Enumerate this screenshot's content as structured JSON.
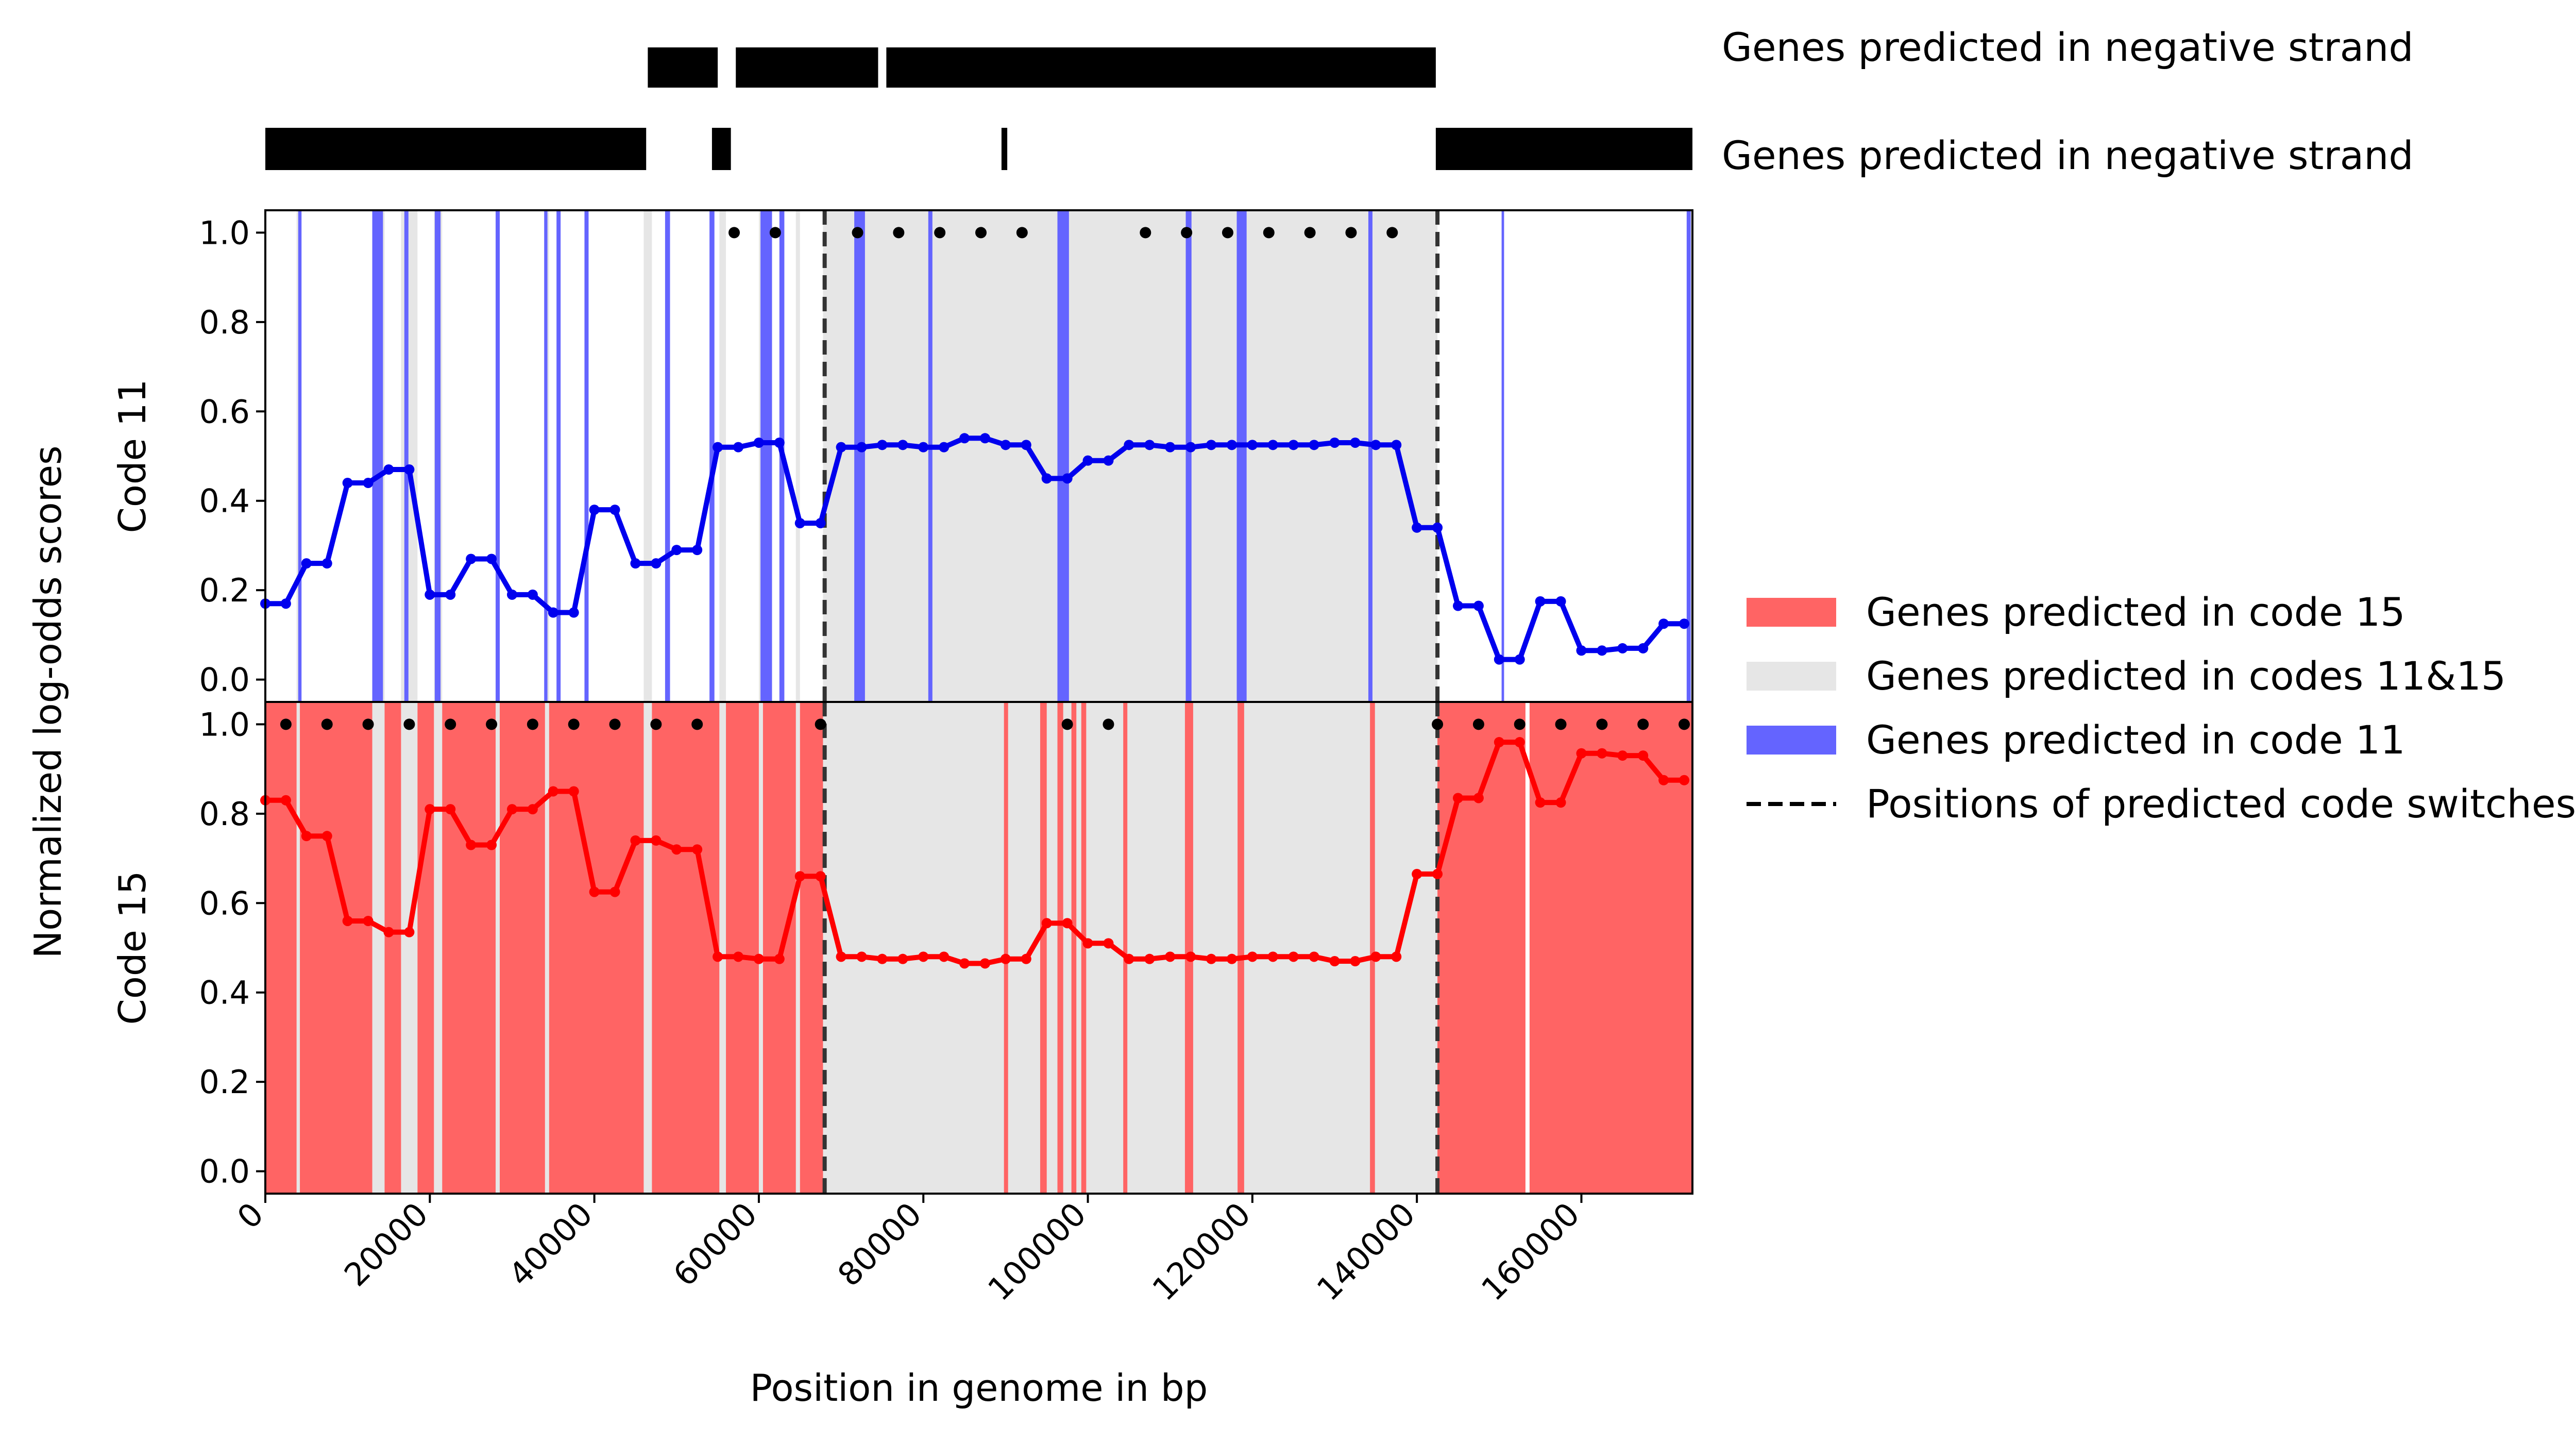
{
  "chart_data": {
    "type": "line",
    "xlabel": "Position in genome in bp",
    "ylabel": "Normalized log-odds scores",
    "xlim": [
      0,
      173500
    ],
    "ylim": [
      -0.05,
      1.05
    ],
    "xticks": [
      0,
      20000,
      40000,
      60000,
      80000,
      100000,
      120000,
      140000,
      160000
    ],
    "yticks": [
      "0.0",
      "0.2",
      "0.4",
      "0.6",
      "0.8",
      "1.0"
    ],
    "strand_tracks": [
      {
        "label": "Genes predicted in negative strand",
        "blocks": [
          [
            46500,
            55000
          ],
          [
            57200,
            74500
          ],
          [
            75500,
            142300
          ]
        ]
      },
      {
        "label": "Genes predicted in negative strand",
        "blocks": [
          [
            0,
            46300
          ],
          [
            54300,
            56600
          ],
          [
            89500,
            90200
          ],
          [
            142300,
            173500
          ]
        ]
      }
    ],
    "code_switches": [
      68000,
      142500
    ],
    "panels": [
      {
        "label": "Code 11",
        "color": "#0000ee",
        "series_x": [
          0,
          2500,
          5000,
          7500,
          10000,
          12500,
          15000,
          17500,
          20000,
          22500,
          25000,
          27500,
          30000,
          32500,
          35000,
          37500,
          40000,
          42500,
          45000,
          47500,
          50000,
          52500,
          55000,
          57500,
          60000,
          62500,
          65000,
          67500,
          70000,
          72500,
          75000,
          77500,
          80000,
          82500,
          85000,
          87500,
          90000,
          92500,
          95000,
          97500,
          100000,
          102500,
          105000,
          107500,
          110000,
          112500,
          115000,
          117500,
          120000,
          122500,
          125000,
          127500,
          130000,
          132500,
          135000,
          137500,
          140000,
          142500,
          145000,
          147500,
          150000,
          152500,
          155000,
          157500,
          160000,
          162500,
          165000,
          167500,
          170000,
          172500
        ],
        "values": [
          0.17,
          0.17,
          0.26,
          0.26,
          0.44,
          0.44,
          0.47,
          0.47,
          0.19,
          0.19,
          0.27,
          0.27,
          0.19,
          0.19,
          0.15,
          0.15,
          0.38,
          0.38,
          0.26,
          0.26,
          0.29,
          0.29,
          0.52,
          0.52,
          0.53,
          0.53,
          0.35,
          0.35,
          0.52,
          0.52,
          0.525,
          0.525,
          0.52,
          0.52,
          0.54,
          0.54,
          0.525,
          0.525,
          0.45,
          0.45,
          0.49,
          0.49,
          0.525,
          0.525,
          0.52,
          0.52,
          0.525,
          0.525,
          0.525,
          0.525,
          0.525,
          0.525,
          0.53,
          0.53,
          0.525,
          0.525,
          0.34,
          0.34,
          0.165,
          0.165,
          0.045,
          0.045,
          0.175,
          0.175,
          0.065,
          0.065,
          0.07,
          0.07,
          0.125,
          0.125
        ],
        "dot_x": [
          57000,
          62000,
          72000,
          77000,
          82000,
          87000,
          92000,
          107000,
          112000,
          117000,
          122000,
          127000,
          132000,
          137000
        ]
      },
      {
        "label": "Code 15",
        "color": "#ff0000",
        "series_x": [
          0,
          2500,
          5000,
          7500,
          10000,
          12500,
          15000,
          17500,
          20000,
          22500,
          25000,
          27500,
          30000,
          32500,
          35000,
          37500,
          40000,
          42500,
          45000,
          47500,
          50000,
          52500,
          55000,
          57500,
          60000,
          62500,
          65000,
          67500,
          70000,
          72500,
          75000,
          77500,
          80000,
          82500,
          85000,
          87500,
          90000,
          92500,
          95000,
          97500,
          100000,
          102500,
          105000,
          107500,
          110000,
          112500,
          115000,
          117500,
          120000,
          122500,
          125000,
          127500,
          130000,
          132500,
          135000,
          137500,
          140000,
          142500,
          145000,
          147500,
          150000,
          152500,
          155000,
          157500,
          160000,
          162500,
          165000,
          167500,
          170000,
          172500
        ],
        "values": [
          0.83,
          0.83,
          0.75,
          0.75,
          0.56,
          0.56,
          0.535,
          0.535,
          0.81,
          0.81,
          0.73,
          0.73,
          0.81,
          0.81,
          0.85,
          0.85,
          0.625,
          0.625,
          0.74,
          0.74,
          0.72,
          0.72,
          0.48,
          0.48,
          0.475,
          0.475,
          0.66,
          0.66,
          0.48,
          0.48,
          0.475,
          0.475,
          0.48,
          0.48,
          0.465,
          0.465,
          0.475,
          0.475,
          0.555,
          0.555,
          0.51,
          0.51,
          0.475,
          0.475,
          0.48,
          0.48,
          0.475,
          0.475,
          0.48,
          0.48,
          0.48,
          0.48,
          0.47,
          0.47,
          0.48,
          0.48,
          0.665,
          0.665,
          0.835,
          0.835,
          0.96,
          0.96,
          0.825,
          0.825,
          0.935,
          0.935,
          0.93,
          0.93,
          0.875,
          0.875
        ],
        "dot_x": [
          2500,
          7500,
          12500,
          17500,
          22500,
          27500,
          32500,
          37500,
          42500,
          47500,
          52500,
          67500,
          97500,
          102500,
          142500,
          147500,
          152500,
          157500,
          162500,
          167500,
          172500
        ]
      }
    ],
    "gene_regions": {
      "code15": [
        [
          0,
          3800
        ],
        [
          4200,
          13000
        ],
        [
          14500,
          16500
        ],
        [
          18500,
          20500
        ],
        [
          21500,
          28000
        ],
        [
          28500,
          34000
        ],
        [
          34500,
          46000
        ],
        [
          47000,
          55200
        ],
        [
          56000,
          60000
        ],
        [
          60500,
          64500
        ],
        [
          65000,
          67800
        ],
        [
          89800,
          90300
        ],
        [
          94200,
          95000
        ],
        [
          96300,
          97000
        ],
        [
          98000,
          98600
        ],
        [
          99200,
          99800
        ],
        [
          104300,
          104800
        ],
        [
          111800,
          112800
        ],
        [
          118200,
          119000
        ],
        [
          134300,
          134900
        ],
        [
          142500,
          153200
        ],
        [
          153700,
          173500
        ]
      ],
      "code11": [
        [
          4000,
          4400
        ],
        [
          13000,
          14300
        ],
        [
          16900,
          17400
        ],
        [
          20600,
          21300
        ],
        [
          28000,
          28500
        ],
        [
          33900,
          34300
        ],
        [
          35400,
          35900
        ],
        [
          38800,
          39300
        ],
        [
          48600,
          49200
        ],
        [
          54000,
          54600
        ],
        [
          60200,
          61600
        ],
        [
          62500,
          63100
        ],
        [
          71600,
          72900
        ],
        [
          80600,
          81100
        ],
        [
          96300,
          97700
        ],
        [
          111900,
          112600
        ],
        [
          118100,
          119300
        ],
        [
          134100,
          134600
        ],
        [
          150300,
          150600
        ],
        [
          172800,
          173300
        ]
      ],
      "both": [
        [
          3800,
          4200
        ],
        [
          13000,
          14500
        ],
        [
          16500,
          18500
        ],
        [
          20500,
          21500
        ],
        [
          28000,
          28500
        ],
        [
          34000,
          34500
        ],
        [
          46000,
          47000
        ],
        [
          55200,
          56000
        ],
        [
          60000,
          60500
        ],
        [
          64500,
          65000
        ],
        [
          67800,
          142500
        ]
      ]
    },
    "legend": {
      "position": "right",
      "entries": [
        {
          "label": "Genes predicted in code 15",
          "style": "patch",
          "color": "#ff6464"
        },
        {
          "label": "Genes predicted in codes 11&15",
          "style": "patch",
          "color": "#e6e6e6"
        },
        {
          "label": "Genes predicted in code 11",
          "style": "patch",
          "color": "#6464ff"
        },
        {
          "label": "Positions of predicted code switches",
          "style": "dashed",
          "color": "#000000"
        }
      ]
    }
  }
}
